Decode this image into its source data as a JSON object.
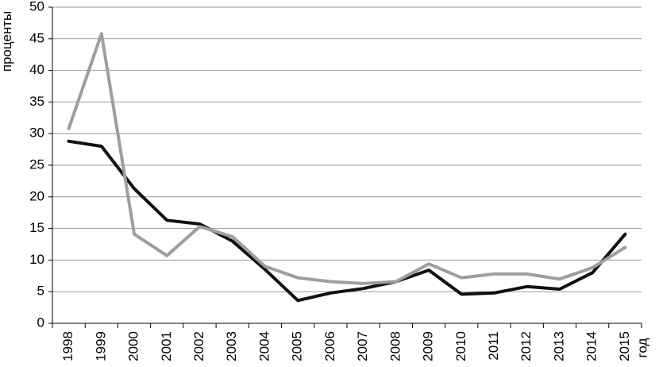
{
  "chart_data": {
    "type": "line",
    "ylabel": "проценты",
    "xlabel": "год",
    "ylim": [
      0,
      50
    ],
    "yticks": [
      0,
      5,
      10,
      15,
      20,
      25,
      30,
      35,
      40,
      45,
      50
    ],
    "categories": [
      "1998",
      "1999",
      "2000",
      "2001",
      "2002",
      "2003",
      "2004",
      "2005",
      "2006",
      "2007",
      "2008",
      "2009",
      "2010",
      "2011",
      "2012",
      "2013",
      "2014",
      "2015"
    ],
    "grid": true,
    "series": [
      {
        "color": "#111111",
        "values": [
          28.8,
          28.0,
          21.3,
          16.3,
          15.7,
          13.0,
          8.5,
          3.6,
          4.8,
          5.5,
          6.6,
          8.4,
          4.6,
          4.8,
          5.8,
          5.4,
          8.0,
          14.1
        ]
      },
      {
        "color": "#9e9e9e",
        "values": [
          30.8,
          45.8,
          14.1,
          10.7,
          15.3,
          13.7,
          9.0,
          7.2,
          6.6,
          6.3,
          6.6,
          9.4,
          7.2,
          7.8,
          7.8,
          7.0,
          8.8,
          12.0
        ]
      }
    ]
  }
}
